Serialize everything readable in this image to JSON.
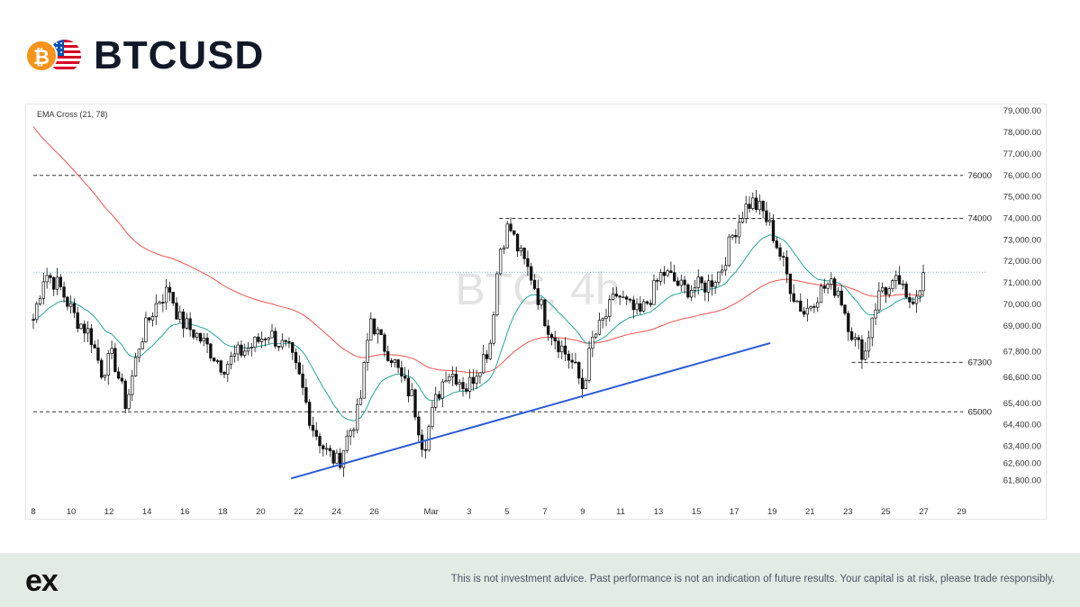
{
  "header": {
    "title": "BTCUSD",
    "btc_icon": "bitcoin-coin-icon",
    "usd_icon": "us-flag-coin-icon",
    "btc_glyph": "₿"
  },
  "footer": {
    "logo_text": "ex",
    "disclaimer": "This is not investment advice. Past performance is not an indication of future results. Your capital is at risk, please trade responsibly."
  },
  "colors": {
    "ema_short": "#26a69a",
    "ema_long": "#ef5350",
    "trendline": "#2a5bd7",
    "candle": "#111111",
    "current_price_line": "#7aa5c8",
    "level_line": "#333333"
  },
  "chart_data": {
    "type": "candlestick",
    "symbol_label": "BTC, 4h",
    "indicator_label": "EMA Cross (21, 78)",
    "ylim": [
      61200,
      79300
    ],
    "y_ticks": [
      79000,
      78000,
      77000,
      76000,
      75000,
      74000,
      73000,
      72000,
      71000,
      70000,
      69000,
      67800,
      66600,
      65400,
      64400,
      63400,
      62600,
      61800
    ],
    "y_tick_labels": [
      "79,000.00",
      "78,000.00",
      "77,000.00",
      "76,000.00",
      "75,000.00",
      "74,000.00",
      "73,000.00",
      "72,000.00",
      "71,000.00",
      "70,000.00",
      "69,000.00",
      "67,800.00",
      "66,600.00",
      "65,400.00",
      "64,400.00",
      "63,400.00",
      "62,600.00",
      "61,800.00"
    ],
    "x_ticks": [
      {
        "label": "8",
        "day": 8
      },
      {
        "label": "10",
        "day": 10
      },
      {
        "label": "12",
        "day": 12
      },
      {
        "label": "14",
        "day": 14
      },
      {
        "label": "16",
        "day": 16
      },
      {
        "label": "18",
        "day": 18
      },
      {
        "label": "20",
        "day": 20
      },
      {
        "label": "22",
        "day": 22
      },
      {
        "label": "24",
        "day": 24
      },
      {
        "label": "26",
        "day": 26
      },
      {
        "label": "Mar",
        "day": 29
      },
      {
        "label": "3",
        "day": 31
      },
      {
        "label": "5",
        "day": 33
      },
      {
        "label": "7",
        "day": 35
      },
      {
        "label": "9",
        "day": 37
      },
      {
        "label": "11",
        "day": 39
      },
      {
        "label": "13",
        "day": 41
      },
      {
        "label": "15",
        "day": 43
      },
      {
        "label": "17",
        "day": 45
      },
      {
        "label": "19",
        "day": 47
      },
      {
        "label": "21",
        "day": 49
      },
      {
        "label": "23",
        "day": 51
      },
      {
        "label": "25",
        "day": 53
      },
      {
        "label": "27",
        "day": 55
      },
      {
        "label": "29",
        "day": 57
      }
    ],
    "x_range": [
      8,
      58.4
    ],
    "levels": [
      {
        "value": 76000,
        "label": "76000",
        "from_day": 8
      },
      {
        "value": 74000,
        "label": "74000",
        "from_day": 32.6
      },
      {
        "value": 67300,
        "label": "67300",
        "from_day": 51.2
      },
      {
        "value": 65000,
        "label": "65000",
        "from_day": 8
      }
    ],
    "current_price": 71500,
    "trendline": [
      {
        "day": 21.6,
        "price": 61900
      },
      {
        "day": 46.9,
        "price": 68200
      }
    ],
    "price_path": [
      [
        8,
        69300
      ],
      [
        8.6,
        71500
      ],
      [
        9.4,
        70800
      ],
      [
        10.2,
        69400
      ],
      [
        11,
        68600
      ],
      [
        11.6,
        66900
      ],
      [
        12.2,
        67600
      ],
      [
        12.9,
        65300
      ],
      [
        13.6,
        68200
      ],
      [
        14.2,
        69500
      ],
      [
        14.6,
        70200
      ],
      [
        15.2,
        70700
      ],
      [
        15.7,
        69300
      ],
      [
        16.6,
        68600
      ],
      [
        17.3,
        67900
      ],
      [
        18,
        67100
      ],
      [
        18.8,
        67700
      ],
      [
        19.6,
        68100
      ],
      [
        20.4,
        68700
      ],
      [
        21,
        68200
      ],
      [
        21.5,
        67800
      ],
      [
        22.1,
        66400
      ],
      [
        22.7,
        64400
      ],
      [
        23.4,
        63200
      ],
      [
        24.1,
        62600
      ],
      [
        24.6,
        63900
      ],
      [
        25.2,
        65100
      ],
      [
        25.8,
        69400
      ],
      [
        26.3,
        68300
      ],
      [
        26.9,
        67600
      ],
      [
        27.5,
        66400
      ],
      [
        28,
        65700
      ],
      [
        28.6,
        63300
      ],
      [
        29.2,
        65400
      ],
      [
        29.8,
        66900
      ],
      [
        30.3,
        66700
      ],
      [
        30.9,
        66100
      ],
      [
        31.6,
        67300
      ],
      [
        32.1,
        68100
      ],
      [
        32.6,
        72500
      ],
      [
        33.1,
        73700
      ],
      [
        33.7,
        72300
      ],
      [
        34.3,
        71300
      ],
      [
        35.1,
        69100
      ],
      [
        35.8,
        68100
      ],
      [
        36.5,
        67200
      ],
      [
        37,
        66100
      ],
      [
        37.5,
        68300
      ],
      [
        38.2,
        69400
      ],
      [
        38.8,
        70500
      ],
      [
        39.4,
        69900
      ],
      [
        40,
        69500
      ],
      [
        40.6,
        70400
      ],
      [
        41.2,
        71500
      ],
      [
        41.7,
        71200
      ],
      [
        42.3,
        70700
      ],
      [
        42.9,
        70800
      ],
      [
        43.6,
        70900
      ],
      [
        44.3,
        71600
      ],
      [
        44.9,
        73200
      ],
      [
        45.5,
        74400
      ],
      [
        45.9,
        74800
      ],
      [
        46.5,
        74300
      ],
      [
        47,
        73400
      ],
      [
        47.5,
        72100
      ],
      [
        48.1,
        70500
      ],
      [
        48.7,
        69600
      ],
      [
        49.3,
        70400
      ],
      [
        49.9,
        70900
      ],
      [
        50.5,
        70700
      ],
      [
        51,
        69200
      ],
      [
        51.4,
        68200
      ],
      [
        51.9,
        67700
      ],
      [
        52.3,
        69600
      ],
      [
        52.8,
        70800
      ],
      [
        53.2,
        70600
      ],
      [
        53.7,
        71100
      ],
      [
        54.1,
        70000
      ],
      [
        54.6,
        70600
      ],
      [
        55.1,
        71500
      ]
    ]
  }
}
